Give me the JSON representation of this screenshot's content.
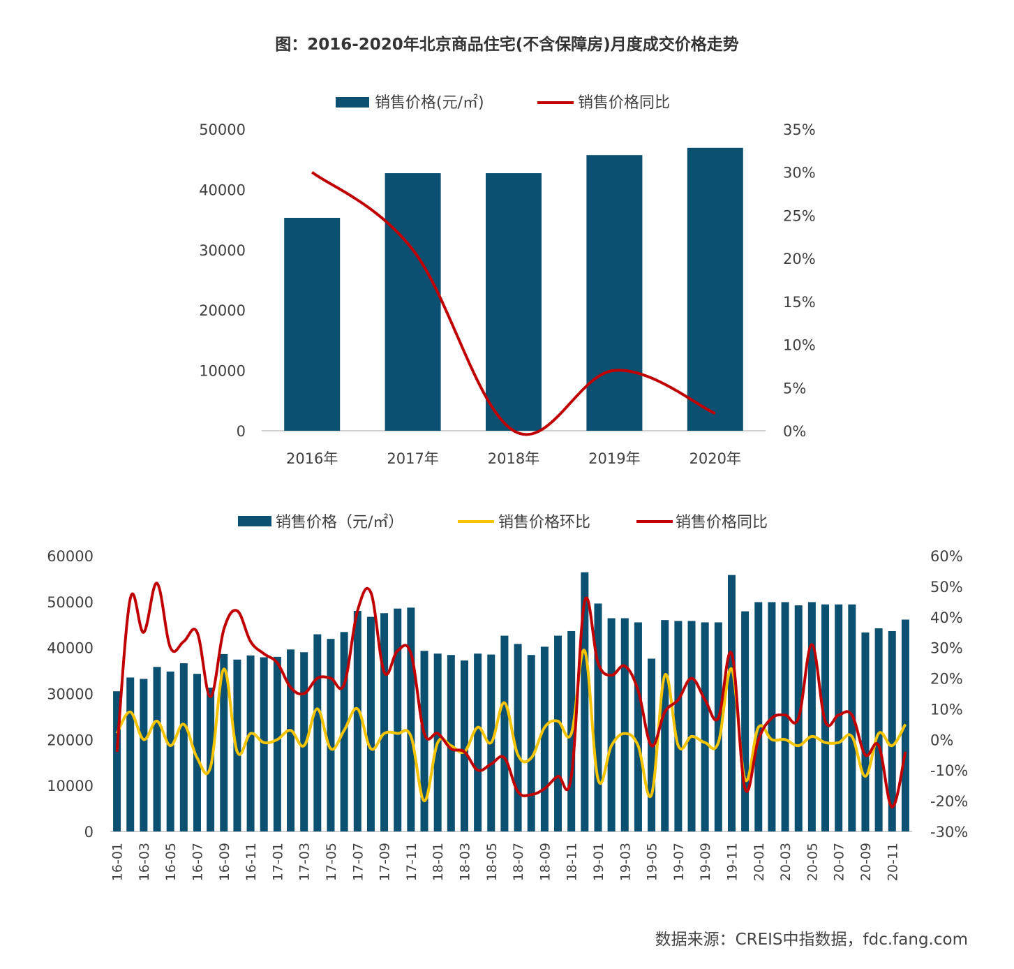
{
  "title": "图：2016-2020年北京商品住宅(不含保障房)月度成交价格走势",
  "source": "数据来源：CREIS中指数据，fdc.fang.com",
  "colors": {
    "bar": "#0b4f71",
    "yoy": "#c00000",
    "mom": "#f5c400",
    "axis": "#bfbfbf",
    "text": "#404040"
  },
  "chart_data": [
    {
      "type": "bar",
      "legend": {
        "position": "top",
        "bar_label": "销售价格(元/㎡)",
        "line_label": "销售价格同比"
      },
      "categories": [
        "2016年",
        "2017年",
        "2018年",
        "2019年",
        "2020年"
      ],
      "series": [
        {
          "name": "销售价格(元/㎡)",
          "type": "bar",
          "axis": "left",
          "values": [
            35300,
            42700,
            42700,
            45700,
            46900
          ]
        },
        {
          "name": "销售价格同比",
          "type": "line",
          "axis": "right",
          "values": [
            30.0,
            21.0,
            0.0,
            7.0,
            2.0
          ]
        }
      ],
      "ylim_left": [
        0,
        50000
      ],
      "ylim_right": [
        0,
        35
      ],
      "left_ticks": [
        "0",
        "10000",
        "20000",
        "30000",
        "40000",
        "50000"
      ],
      "right_ticks": [
        "0%",
        "5%",
        "10%",
        "15%",
        "20%",
        "25%",
        "30%",
        "35%"
      ],
      "grid": false
    },
    {
      "type": "bar",
      "legend": {
        "position": "top",
        "bar_label": "销售价格（元/㎡）",
        "mom_label": "销售价格环比",
        "yoy_label": "销售价格同比"
      },
      "x_tick_labels": [
        "16-01",
        "16-03",
        "16-05",
        "16-07",
        "16-09",
        "16-11",
        "17-01",
        "17-03",
        "17-05",
        "17-07",
        "17-09",
        "17-11",
        "18-01",
        "18-03",
        "18-05",
        "18-07",
        "18-09",
        "18-11",
        "19-01",
        "19-03",
        "19-05",
        "19-07",
        "19-09",
        "19-11",
        "20-01",
        "20-03",
        "20-05",
        "20-07",
        "20-09",
        "20-11"
      ],
      "series": [
        {
          "name": "销售价格（元/㎡）",
          "type": "bar",
          "axis": "left",
          "values": [
            30500,
            33500,
            33200,
            35800,
            34800,
            36600,
            34300,
            31300,
            38600,
            37400,
            38300,
            37900,
            38000,
            39600,
            39000,
            42900,
            41900,
            43400,
            48000,
            46700,
            47500,
            48500,
            48700,
            39300,
            38700,
            38400,
            37200,
            38700,
            38500,
            42600,
            40800,
            38400,
            40200,
            42600,
            43600,
            56400,
            49600,
            46400,
            46400,
            45500,
            37600,
            46000,
            45800,
            45800,
            45500,
            45500,
            55800,
            47900,
            49900,
            49900,
            49900,
            49200,
            49900,
            49400,
            49400,
            49400,
            43300,
            44200,
            43600,
            46100
          ]
        },
        {
          "name": "销售价格环比",
          "type": "line",
          "axis": "right",
          "values": [
            2,
            9,
            0,
            6,
            -2,
            5,
            -6,
            -9,
            23,
            -4,
            2,
            -1,
            0,
            3,
            -2,
            10,
            -3,
            3,
            10,
            -3,
            2,
            2,
            1,
            -20,
            -1,
            -2,
            -4,
            4,
            -1,
            12,
            -5,
            -6,
            4,
            6,
            2,
            29,
            -13,
            -2,
            2,
            -2,
            -18,
            21,
            -2,
            1,
            -1,
            -1,
            23,
            -13,
            4,
            0,
            0,
            -2,
            1,
            -1,
            -1,
            1,
            -12,
            2,
            -2,
            5
          ]
        },
        {
          "name": "销售价格同比",
          "type": "line",
          "axis": "right",
          "values": [
            -4,
            46,
            35,
            51,
            30,
            32,
            35,
            14,
            36,
            42,
            32,
            28,
            25,
            17,
            15,
            20,
            20,
            18,
            42,
            48,
            22,
            29,
            28,
            2,
            2,
            -3,
            -4,
            -10,
            -8,
            -6,
            -17,
            -18,
            -16,
            -12,
            -12,
            45,
            25,
            21,
            24,
            16,
            -2,
            9,
            13,
            20,
            13,
            7,
            28,
            -16,
            0,
            7,
            8,
            7,
            31,
            6,
            8,
            8,
            -5,
            -2,
            -22,
            -4
          ]
        }
      ],
      "ylim_left": [
        0,
        60000
      ],
      "ylim_right": [
        -30,
        60
      ],
      "left_ticks": [
        "0",
        "10000",
        "20000",
        "30000",
        "40000",
        "50000",
        "60000"
      ],
      "right_ticks": [
        "-30%",
        "-20%",
        "-10%",
        "0%",
        "10%",
        "20%",
        "30%",
        "40%",
        "50%",
        "60%"
      ],
      "grid": false
    }
  ]
}
